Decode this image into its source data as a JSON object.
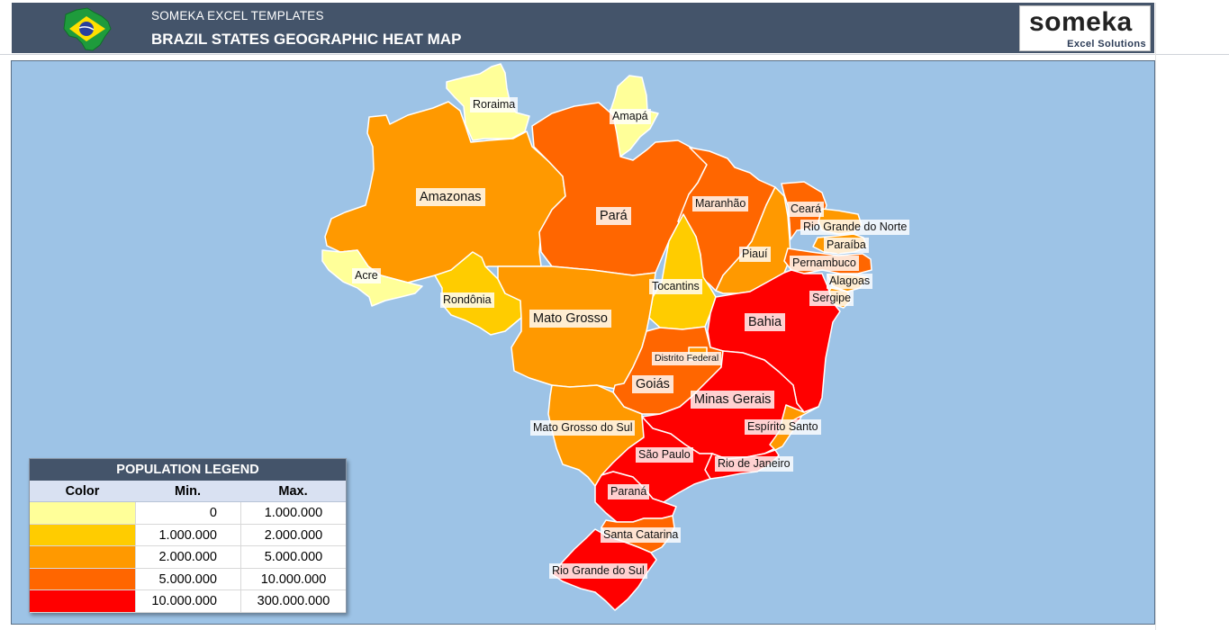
{
  "header": {
    "subtitle": "SOMEKA EXCEL TEMPLATES",
    "title": "BRAZIL STATES GEOGRAPHIC HEAT MAP",
    "logo_main": "someka",
    "logo_sub": "Excel Solutions",
    "background": "#44546a"
  },
  "map": {
    "ocean_color": "#9dc3e6",
    "states": {
      "roraima": "Roraima",
      "amapa": "Amapá",
      "amazonas": "Amazonas",
      "para": "Pará",
      "maranhao": "Maranhão",
      "ceara": "Ceará",
      "rio_grande_do_norte": "Rio Grande do Norte",
      "paraiba": "Paraíba",
      "piaui": "Piauí",
      "pernambuco": "Pernambuco",
      "alagoas": "Alagoas",
      "sergipe": "Sergipe",
      "acre": "Acre",
      "rondonia": "Rondônia",
      "tocantins": "Tocantins",
      "mato_grosso": "Mato Grosso",
      "bahia": "Bahia",
      "distrito_federal": "Distrito Federal",
      "goias": "Goiás",
      "minas_gerais": "Minas Gerais",
      "espirito_santo": "Espírito Santo",
      "mato_grosso_do_sul": "Mato Grosso do Sul",
      "sao_paulo": "São Paulo",
      "rio_de_janeiro": "Rio de Janeiro",
      "parana": "Paraná",
      "santa_catarina": "Santa Catarina",
      "rio_grande_do_sul": "Rio Grande do Sul"
    },
    "state_colors": {
      "roraima": "#ffff99",
      "amapa": "#ffff99",
      "acre": "#ffff99",
      "amazonas": "#ff9900",
      "para": "#ff6600",
      "maranhao": "#ff6600",
      "ceara": "#ff6600",
      "rio_grande_do_norte": "#ff9900",
      "paraiba": "#ff9900",
      "piaui": "#ff9900",
      "pernambuco": "#ff6600",
      "alagoas": "#ff9900",
      "sergipe": "#ff9900",
      "rondonia": "#ffcc00",
      "tocantins": "#ffcc00",
      "mato_grosso": "#ff9900",
      "bahia": "#ff0000",
      "distrito_federal": "#ff9900",
      "goias": "#ff6600",
      "minas_gerais": "#ff0000",
      "espirito_santo": "#ff9900",
      "mato_grosso_do_sul": "#ff9900",
      "sao_paulo": "#ff0000",
      "rio_de_janeiro": "#ff0000",
      "parana": "#ff0000",
      "santa_catarina": "#ff6600",
      "rio_grande_do_sul": "#ff0000"
    }
  },
  "legend": {
    "title": "POPULATION LEGEND",
    "headers": [
      "Color",
      "Min.",
      "Max."
    ],
    "rows": [
      {
        "color": "#ffff99",
        "min": "0",
        "max": "1.000.000"
      },
      {
        "color": "#ffcc00",
        "min": "1.000.000",
        "max": "2.000.000"
      },
      {
        "color": "#ff9900",
        "min": "2.000.000",
        "max": "5.000.000"
      },
      {
        "color": "#ff6600",
        "min": "5.000.000",
        "max": "10.000.000"
      },
      {
        "color": "#ff0000",
        "min": "10.000.000",
        "max": "300.000.000"
      }
    ]
  }
}
